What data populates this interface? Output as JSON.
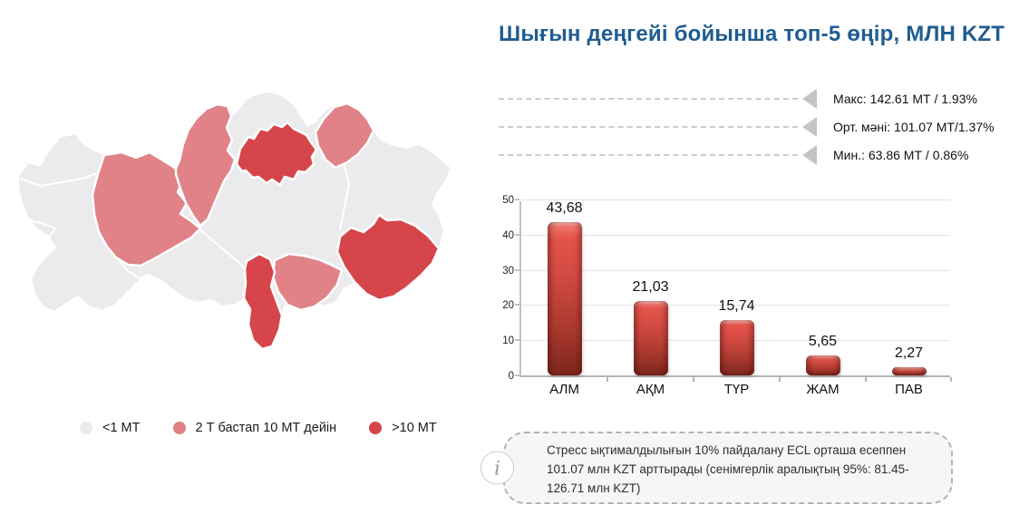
{
  "title": "Шығын деңгейі бойынша топ-5 өңір, МЛН KZT",
  "colors": {
    "title": "#1f5c90",
    "dashed_line": "#cbcbcb",
    "triangle": "#c4c4c4",
    "grid": "#e3e3e3",
    "axis": "#b5b5b5",
    "bar_gradient": [
      "#f2837b",
      "#e4544b",
      "#d24a42",
      "#aa392f",
      "#7c261d"
    ],
    "note_background": "#f6f6f7",
    "note_border": "#b3b3b3"
  },
  "map": {
    "colors": {
      "low": "#ebebed",
      "mid": "#e08287",
      "high": "#d6454a"
    },
    "legend": [
      {
        "label": "<1 МТ",
        "category": "low"
      },
      {
        "label": "2 Т бастап 10 МТ дейін",
        "category": "mid"
      },
      {
        "label": ">10 МТ",
        "category": "high"
      }
    ]
  },
  "indicators": [
    {
      "label": "Макс: 142.61 МТ / 1.93%"
    },
    {
      "label": "Орт. мәні: 101.07 МТ/1.37%"
    },
    {
      "label": "Мин.: 63.86 МТ / 0.86%"
    }
  ],
  "chart_data": {
    "type": "bar",
    "title": "Шығын деңгейі бойынша топ-5 өңір, МЛН KZT",
    "categories": [
      "АЛМ",
      "АҚМ",
      "ТҮР",
      "ЖАМ",
      "ПАВ"
    ],
    "values": [
      43.68,
      21.03,
      15.74,
      5.65,
      2.27
    ],
    "value_labels": [
      "43,68",
      "21,03",
      "15,74",
      "5,65",
      "2,27"
    ],
    "xlabel": "",
    "ylabel": "",
    "ylim": [
      0,
      50
    ],
    "yticks": [
      0,
      10,
      20,
      30,
      40,
      50
    ],
    "grid": true,
    "legend_position": "none"
  },
  "note": {
    "text": "Стресс ықтималдылығын 10% пайдалану ECL орташа есеппен 101.07 млн KZT арттырады (сенімгерлік аралықтың 95%: 81.45-126.71 млн KZT)"
  },
  "icons": {
    "info": "i"
  }
}
